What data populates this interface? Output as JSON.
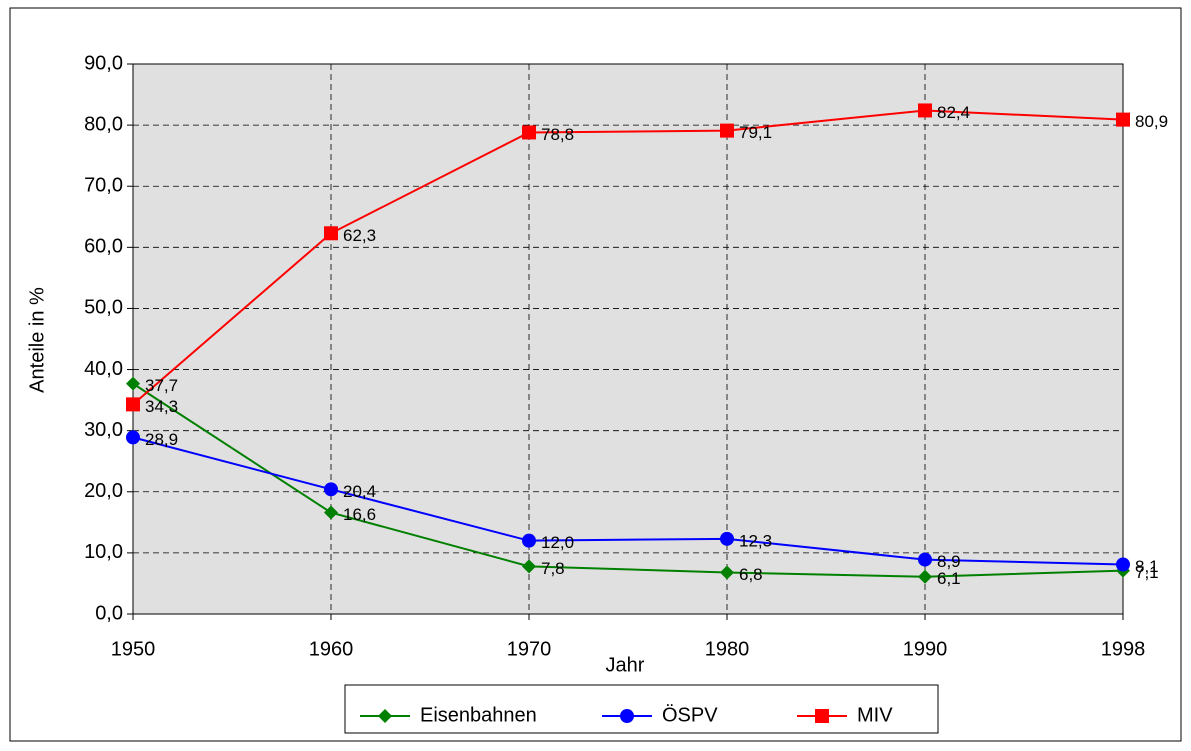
{
  "chart_data": {
    "type": "line",
    "x_label": "Jahr",
    "y_label": "Anteile in %",
    "categories": [
      "1950",
      "1960",
      "1970",
      "1980",
      "1990",
      "1998"
    ],
    "series": [
      {
        "name": "Eisenbahnen",
        "color": "#008000",
        "marker": "diamond",
        "values": [
          37.7,
          16.6,
          7.8,
          6.8,
          6.1,
          7.1
        ],
        "value_labels": [
          "37,7",
          "16,6",
          "7,8",
          "6,8",
          "6,1",
          "7,1"
        ]
      },
      {
        "name": "ÖSPV",
        "color": "#0000ff",
        "marker": "circle",
        "values": [
          28.9,
          20.4,
          12.0,
          12.3,
          8.9,
          8.1
        ],
        "value_labels": [
          "28,9",
          "20,4",
          "12,0",
          "12,3",
          "8,9",
          "8,1"
        ]
      },
      {
        "name": "MIV",
        "color": "#ff0000",
        "marker": "square",
        "values": [
          34.3,
          62.3,
          78.8,
          79.1,
          82.4,
          80.9
        ],
        "value_labels": [
          "34,3",
          "62,3",
          "78,8",
          "79,1",
          "82,4",
          "80,9"
        ]
      }
    ],
    "ylim": [
      0,
      90
    ],
    "yticks": [
      {
        "value": 0,
        "label": "0,0"
      },
      {
        "value": 10,
        "label": "10,0"
      },
      {
        "value": 20,
        "label": "20,0"
      },
      {
        "value": 30,
        "label": "30,0"
      },
      {
        "value": 40,
        "label": "40,0"
      },
      {
        "value": 50,
        "label": "50,0"
      },
      {
        "value": 60,
        "label": "60,0"
      },
      {
        "value": 70,
        "label": "70,0"
      },
      {
        "value": 80,
        "label": "80,0"
      },
      {
        "value": 90,
        "label": "90,0"
      }
    ],
    "grid": true,
    "legend": "bottom"
  }
}
